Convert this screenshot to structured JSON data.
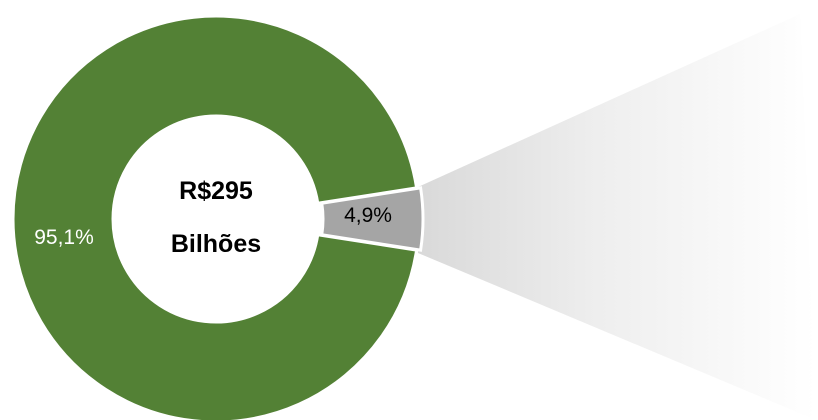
{
  "chart_data": {
    "type": "pie",
    "donut": true,
    "center_text": [
      "R$295",
      "Bilhões"
    ],
    "slices": [
      {
        "value": 95.1,
        "label": "95,1%",
        "color": "#538135",
        "label_color": "#ffffff"
      },
      {
        "value": 4.9,
        "label": "4,9%",
        "color": "#a5a5a5",
        "label_color": "#000000"
      }
    ],
    "legend": "none",
    "exploded_slice_callout": "gray gradient wedge extending right from the 4,9% slice"
  }
}
